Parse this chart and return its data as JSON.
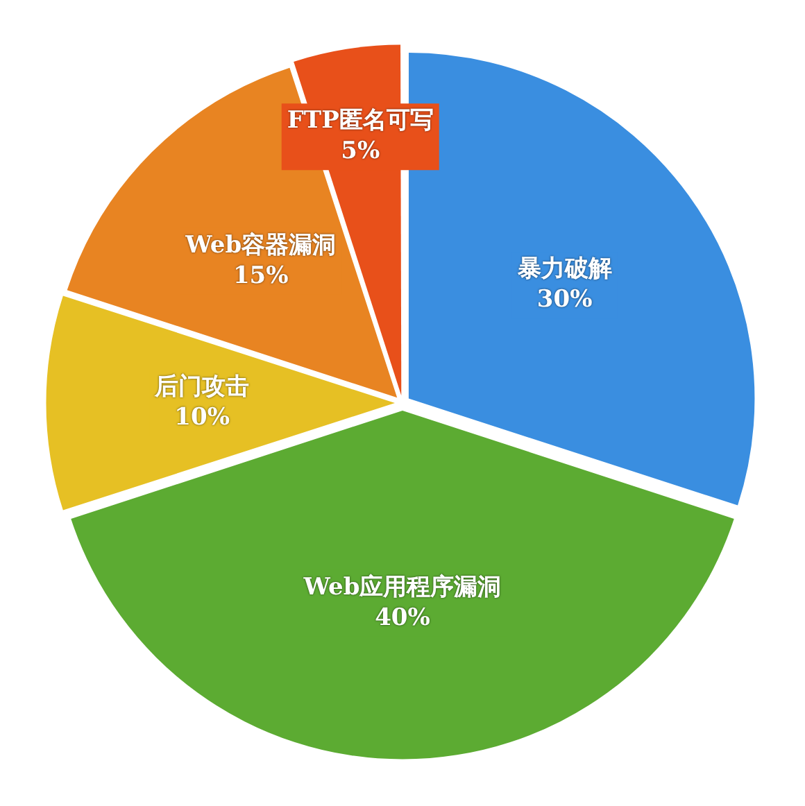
{
  "chart_data": {
    "type": "pie",
    "categories": [
      "暴力破解",
      "Web应用程序漏洞",
      "后门攻击",
      "Web容器漏洞",
      "FTP匿名可写"
    ],
    "values": [
      30,
      40,
      10,
      15,
      5
    ],
    "colors": [
      "#3a8ee0",
      "#5cab32",
      "#e6c024",
      "#e88422",
      "#e8501a"
    ],
    "value_labels": [
      "30%",
      "40%",
      "10%",
      "15%",
      "5%"
    ],
    "legend": false
  }
}
